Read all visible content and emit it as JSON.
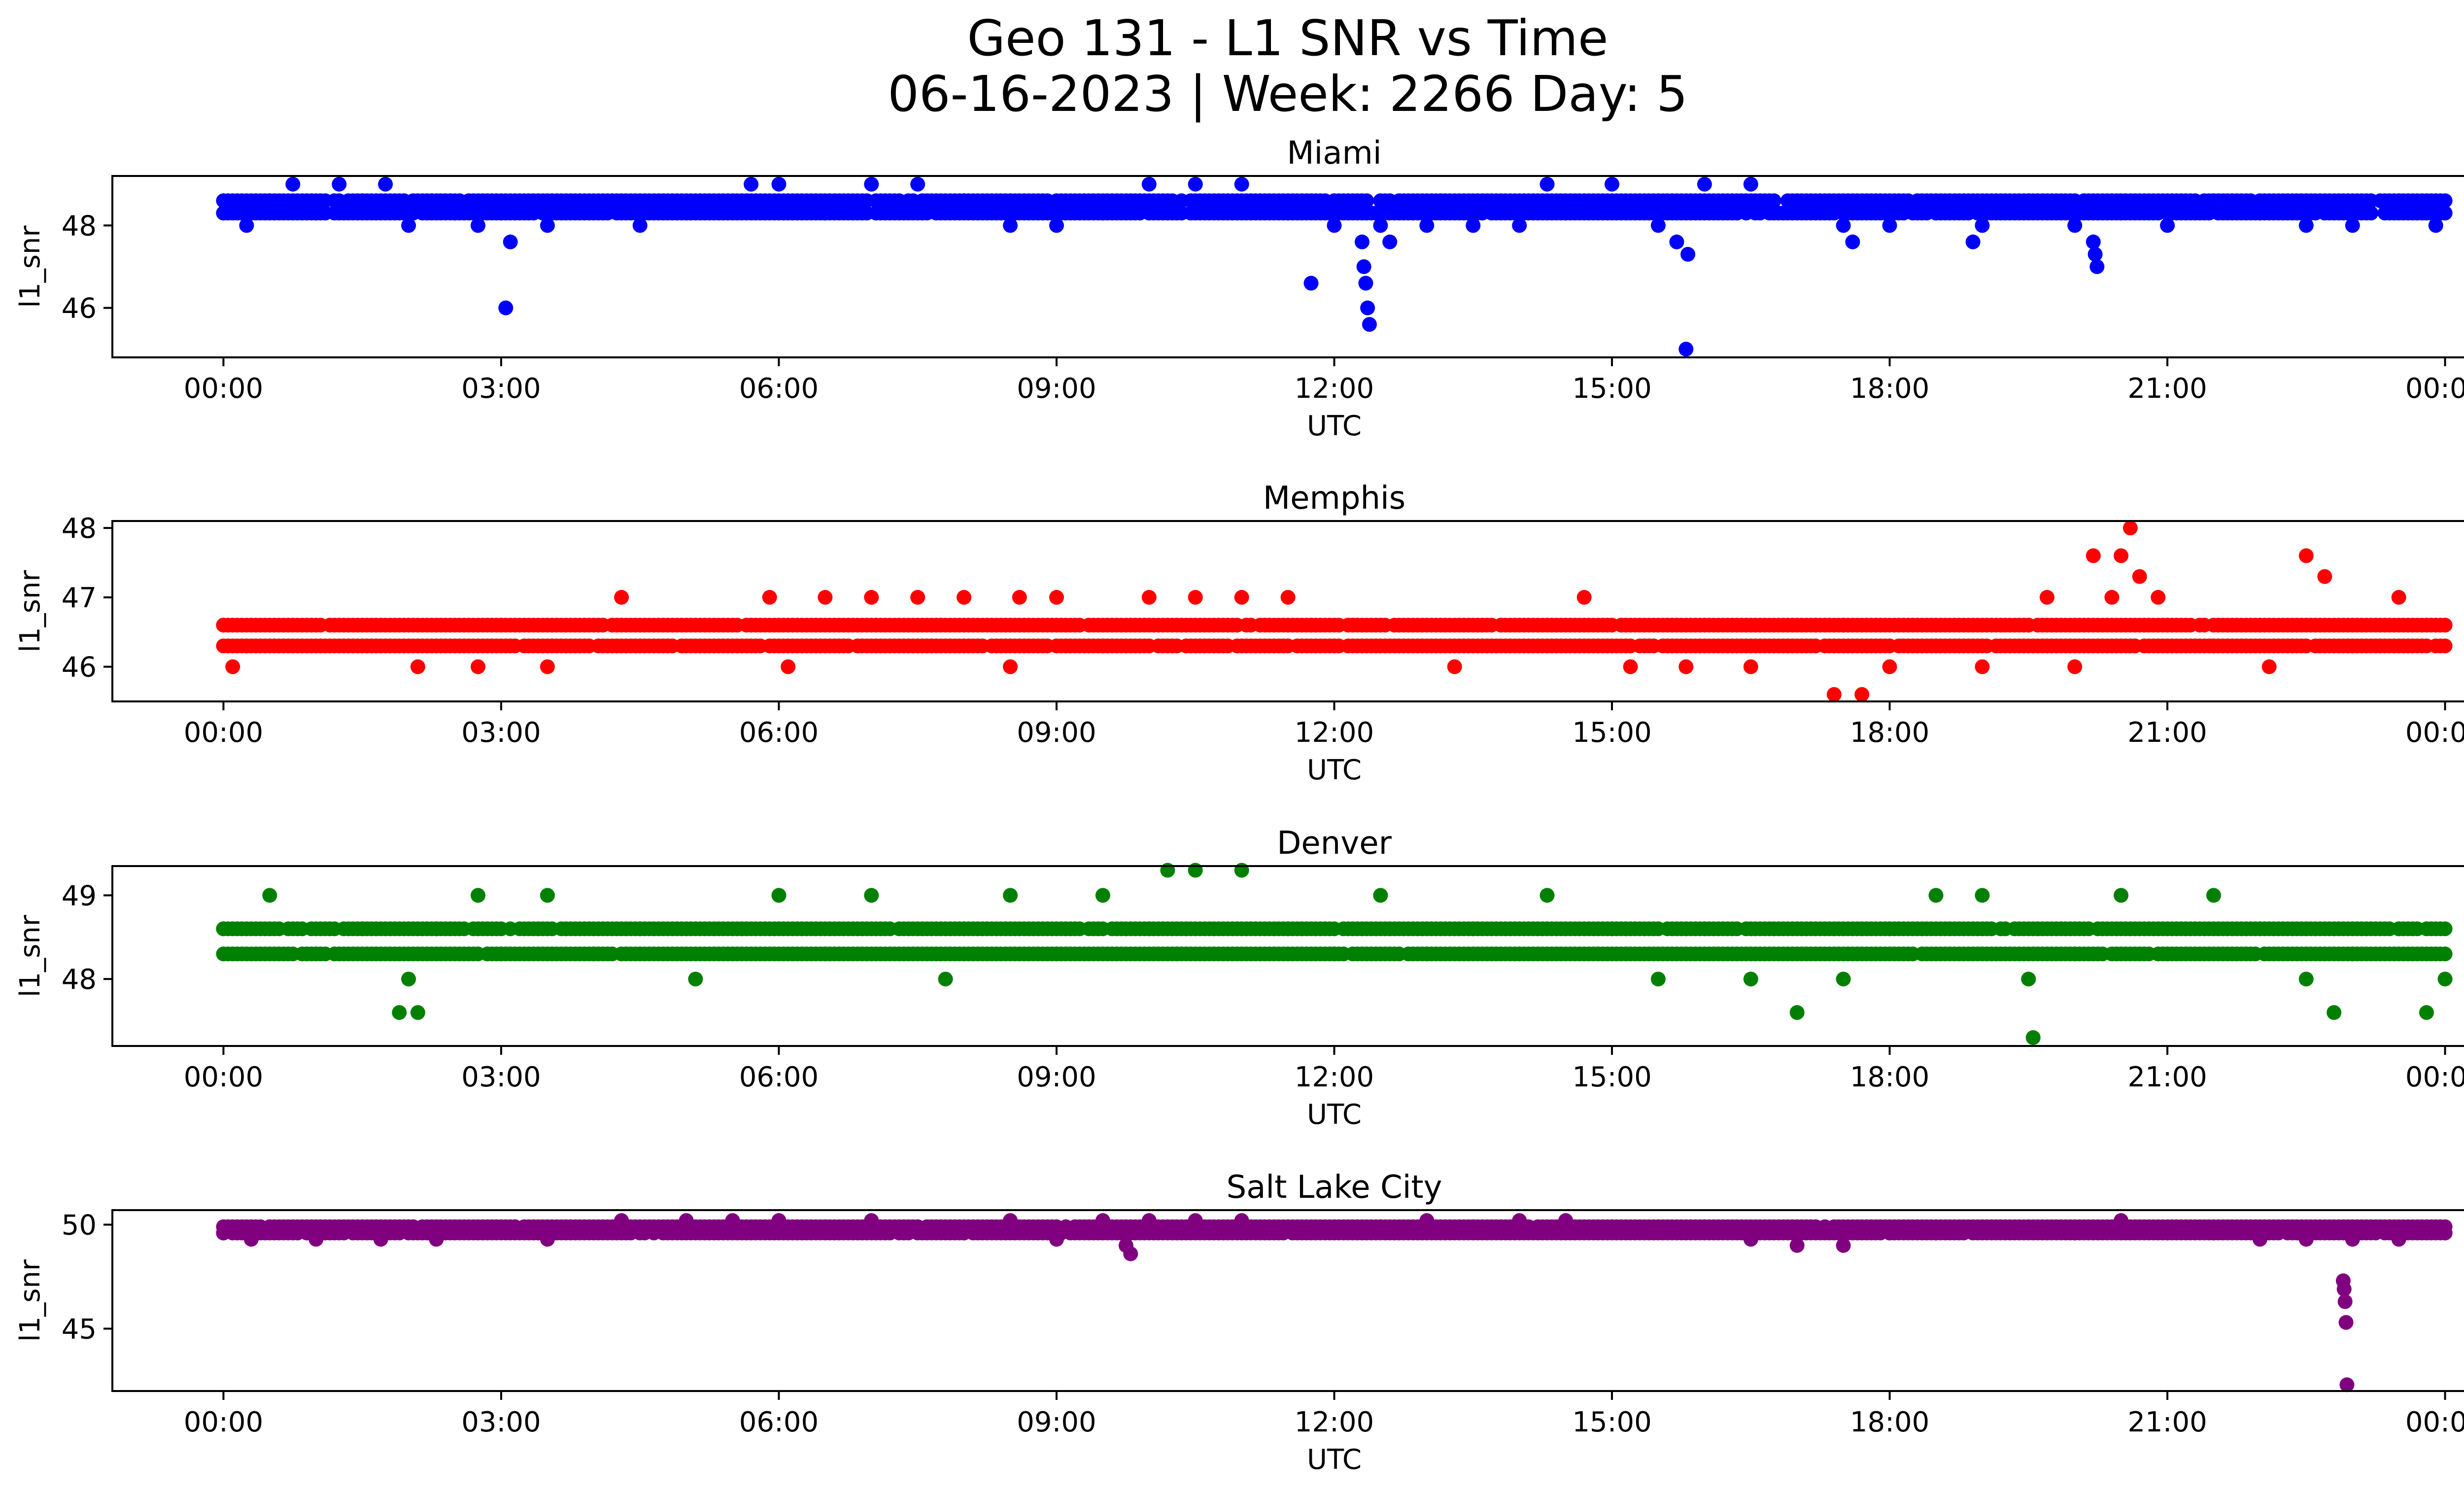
{
  "title": {
    "line1": "Geo 131 - L1 SNR vs Time",
    "line2": "06-16-2023 | Week: 2266 Day: 5"
  },
  "chart_data": [
    {
      "type": "scatter",
      "title": "Miami",
      "xlabel": "UTC",
      "ylabel": "l1_snr",
      "color": "#0000ff",
      "x_ticks": [
        "00:00",
        "03:00",
        "06:00",
        "09:00",
        "12:00",
        "15:00",
        "18:00",
        "21:00",
        "00:00"
      ],
      "y_ticks": [
        46,
        48
      ],
      "xlim_hours": [
        -1.2,
        25.2
      ],
      "ylim": [
        44.8,
        49.2
      ],
      "levels": [
        48.3,
        48.6
      ],
      "x": [
        0,
        0.25,
        0.5,
        0.75,
        1.0,
        1.25,
        1.5,
        1.75,
        2.0,
        2.25,
        2.5,
        2.75,
        3.0,
        3.05,
        3.1,
        3.5,
        4.5,
        5.0,
        5.7,
        6.0,
        6.5,
        7.0,
        7.5,
        8.0,
        8.5,
        9.0,
        9.5,
        10.0,
        10.5,
        11.0,
        11.5,
        11.75,
        12.0,
        12.3,
        12.32,
        12.34,
        12.36,
        12.38,
        12.5,
        12.6,
        13.0,
        13.5,
        14.0,
        14.3,
        14.5,
        15.0,
        15.5,
        15.7,
        15.8,
        15.82,
        16.0,
        16.5,
        17.0,
        17.5,
        17.6,
        18.0,
        18.5,
        18.9,
        19.0,
        19.5,
        20.0,
        20.2,
        20.22,
        20.24,
        20.5,
        21.0,
        21.5,
        22.0,
        22.5,
        23.0,
        23.5,
        23.9,
        24.0
      ],
      "y": [
        48.3,
        48.0,
        48.6,
        49.0,
        48.3,
        49.0,
        48.6,
        49.0,
        48.0,
        48.6,
        48.3,
        48.0,
        48.3,
        46.0,
        47.6,
        48.0,
        48.0,
        48.3,
        49.0,
        49.0,
        48.3,
        49.0,
        49.0,
        48.6,
        48.0,
        48.0,
        48.3,
        49.0,
        49.0,
        49.0,
        48.3,
        46.6,
        48.0,
        47.6,
        47.0,
        46.6,
        46.0,
        45.6,
        48.0,
        47.6,
        48.0,
        48.0,
        48.0,
        49.0,
        48.3,
        49.0,
        48.0,
        47.6,
        45.0,
        47.3,
        49.0,
        49.0,
        48.6,
        48.0,
        47.6,
        48.0,
        48.3,
        47.6,
        48.0,
        48.6,
        48.0,
        47.6,
        47.3,
        47.0,
        48.3,
        48.0,
        48.6,
        48.3,
        48.0,
        48.0,
        48.6,
        48.0,
        48.3
      ]
    },
    {
      "type": "scatter",
      "title": "Memphis",
      "xlabel": "UTC",
      "ylabel": "l1_snr",
      "color": "#ff0000",
      "x_ticks": [
        "00:00",
        "03:00",
        "06:00",
        "09:00",
        "12:00",
        "15:00",
        "18:00",
        "21:00",
        "00:00"
      ],
      "y_ticks": [
        46,
        47,
        48
      ],
      "xlim_hours": [
        -1.2,
        25.2
      ],
      "ylim": [
        45.5,
        48.1
      ],
      "levels": [
        46.3,
        46.6
      ],
      "x": [
        0,
        0.1,
        0.25,
        2.1,
        2.75,
        3.0,
        3.5,
        4.3,
        5.9,
        6.1,
        6.5,
        7.0,
        7.5,
        8.0,
        8.5,
        8.6,
        9.0,
        9.5,
        10.0,
        10.5,
        11.0,
        11.5,
        11.75,
        12.0,
        13.3,
        14.7,
        15.2,
        15.8,
        16.5,
        16.9,
        17.2,
        17.4,
        17.5,
        17.7,
        18.0,
        18.5,
        19.0,
        19.5,
        19.7,
        20.0,
        20.2,
        20.4,
        20.5,
        20.6,
        20.7,
        20.9,
        21.0,
        21.5,
        22.0,
        22.1,
        22.5,
        22.7,
        23.0,
        23.5,
        24.0
      ],
      "y": [
        46.6,
        46.0,
        46.3,
        46.0,
        46.0,
        46.6,
        46.0,
        47.0,
        47.0,
        46.0,
        47.0,
        47.0,
        47.0,
        47.0,
        46.0,
        47.0,
        47.0,
        46.3,
        47.0,
        47.0,
        47.0,
        47.0,
        46.6,
        46.3,
        46.0,
        47.0,
        46.0,
        46.0,
        46.0,
        46.3,
        46.6,
        45.6,
        46.6,
        45.6,
        46.0,
        46.6,
        46.0,
        46.6,
        47.0,
        46.0,
        47.6,
        47.0,
        47.6,
        48.0,
        47.3,
        47.0,
        46.6,
        46.3,
        46.6,
        46.0,
        47.6,
        47.3,
        46.3,
        47.0,
        46.6
      ]
    },
    {
      "type": "scatter",
      "title": "Denver",
      "xlabel": "UTC",
      "ylabel": "l1_snr",
      "color": "#008000",
      "x_ticks": [
        "00:00",
        "03:00",
        "06:00",
        "09:00",
        "12:00",
        "15:00",
        "18:00",
        "21:00",
        "00:00"
      ],
      "y_ticks": [
        48,
        49
      ],
      "xlim_hours": [
        -1.2,
        25.2
      ],
      "ylim": [
        47.2,
        49.35
      ],
      "levels": [
        48.3,
        48.6
      ],
      "x": [
        0,
        0.5,
        1.0,
        1.5,
        1.9,
        2.0,
        2.1,
        2.3,
        2.75,
        3.0,
        3.5,
        4.0,
        4.5,
        5.1,
        5.5,
        6.0,
        6.5,
        7.0,
        7.8,
        8.0,
        8.5,
        9.0,
        9.5,
        10.0,
        10.2,
        10.3,
        10.5,
        10.8,
        11.0,
        11.5,
        12.0,
        12.5,
        13.0,
        13.5,
        14.0,
        14.3,
        15.0,
        15.5,
        16.0,
        16.5,
        17.0,
        17.5,
        18.0,
        18.5,
        19.0,
        19.5,
        19.55,
        20.0,
        20.5,
        21.0,
        21.5,
        22.0,
        22.5,
        22.8,
        23.0,
        23.5,
        23.8,
        24.0
      ],
      "y": [
        48.6,
        49.0,
        48.3,
        48.6,
        47.6,
        48.0,
        47.6,
        48.6,
        49.0,
        48.3,
        49.0,
        48.3,
        48.6,
        48.0,
        48.3,
        49.0,
        48.3,
        49.0,
        48.0,
        48.6,
        49.0,
        48.3,
        49.0,
        48.6,
        49.3,
        48.3,
        49.3,
        48.6,
        49.3,
        48.6,
        48.3,
        49.0,
        48.3,
        48.6,
        48.3,
        49.0,
        48.6,
        48.0,
        48.6,
        48.0,
        47.6,
        48.0,
        48.6,
        49.0,
        49.0,
        48.0,
        47.3,
        48.3,
        49.0,
        48.3,
        49.0,
        48.6,
        48.0,
        47.6,
        48.3,
        48.6,
        47.6,
        48.0
      ]
    },
    {
      "type": "scatter",
      "title": "Salt Lake City",
      "xlabel": "UTC",
      "ylabel": "l1_snr",
      "color": "#800080",
      "x_ticks": [
        "00:00",
        "03:00",
        "06:00",
        "09:00",
        "12:00",
        "15:00",
        "18:00",
        "21:00",
        "00:00"
      ],
      "y_ticks": [
        45,
        50
      ],
      "xlim_hours": [
        -1.2,
        25.2
      ],
      "ylim": [
        42.0,
        50.7
      ],
      "levels": [
        49.6,
        49.9
      ],
      "x": [
        0,
        0.3,
        1.0,
        1.7,
        2.3,
        3.5,
        4.3,
        5.0,
        5.5,
        6.0,
        6.5,
        7.0,
        7.5,
        8.0,
        8.5,
        9.0,
        9.5,
        9.75,
        9.8,
        10.0,
        10.5,
        11.0,
        11.5,
        12.0,
        12.5,
        13.0,
        13.5,
        14.0,
        14.5,
        15.0,
        15.5,
        16.0,
        16.5,
        17.0,
        17.5,
        18.0,
        18.5,
        19.0,
        19.5,
        20.0,
        20.5,
        21.0,
        21.5,
        22.0,
        22.5,
        22.9,
        22.91,
        22.92,
        22.93,
        22.94,
        23.0,
        23.5,
        24.0
      ],
      "y": [
        49.6,
        49.3,
        49.3,
        49.3,
        49.3,
        49.3,
        50.2,
        50.2,
        50.2,
        50.2,
        49.9,
        50.2,
        49.9,
        49.6,
        50.2,
        49.3,
        50.2,
        49.0,
        48.6,
        50.2,
        50.2,
        50.2,
        49.9,
        49.9,
        49.9,
        50.2,
        49.9,
        50.2,
        50.2,
        49.9,
        49.9,
        49.9,
        49.3,
        49.0,
        49.0,
        49.6,
        49.6,
        49.9,
        49.9,
        49.6,
        50.2,
        49.6,
        49.6,
        49.3,
        49.3,
        47.3,
        46.9,
        46.3,
        45.3,
        42.3,
        49.3,
        49.3,
        49.6
      ]
    }
  ]
}
